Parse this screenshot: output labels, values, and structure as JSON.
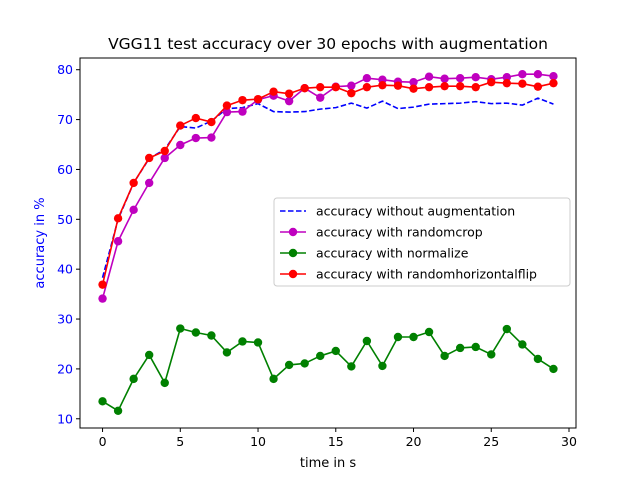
{
  "chart_data": {
    "type": "line",
    "title": "VGG11 test accuracy over 30 epochs with augmentation",
    "xlabel": "time in s",
    "ylabel": "accuracy in %",
    "ylabel_color": "#0000ff",
    "ytick_color": "#0000ff",
    "xlim": [
      -1.45,
      30.45
    ],
    "ylim": [
      8.15,
      82.35
    ],
    "xticks": [
      0,
      5,
      10,
      15,
      20,
      25,
      30
    ],
    "yticks": [
      10,
      20,
      30,
      40,
      50,
      60,
      70,
      80
    ],
    "grid": false,
    "legend_position": "center-right",
    "x": [
      0,
      1,
      2,
      3,
      4,
      5,
      6,
      7,
      8,
      9,
      10,
      11,
      12,
      13,
      14,
      15,
      16,
      17,
      18,
      19,
      20,
      21,
      22,
      23,
      24,
      25,
      26,
      27,
      28,
      29
    ],
    "series": [
      {
        "name": "accuracy without augmentation",
        "color": "#0000ff",
        "style": "dashed",
        "marker": "none",
        "values": [
          38.3,
          50.0,
          57.3,
          62.2,
          64.0,
          68.6,
          68.3,
          69.7,
          72.2,
          72.4,
          73.2,
          71.6,
          71.5,
          71.6,
          72.1,
          72.4,
          73.3,
          72.3,
          73.7,
          72.2,
          72.5,
          73.1,
          73.2,
          73.3,
          73.6,
          73.2,
          73.3,
          72.9,
          74.3,
          73.1
        ]
      },
      {
        "name": "accuracy with randomcrop",
        "color": "#bf00bf",
        "style": "solid",
        "marker": "circle",
        "values": [
          34.1,
          45.6,
          51.9,
          57.3,
          62.3,
          64.9,
          66.3,
          66.4,
          71.5,
          71.6,
          74.0,
          74.8,
          73.7,
          76.3,
          74.4,
          76.6,
          76.8,
          78.3,
          78.0,
          77.6,
          77.5,
          78.6,
          78.2,
          78.3,
          78.5,
          78.1,
          78.5,
          79.1,
          79.1,
          78.7
        ]
      },
      {
        "name": "accuracy with normalize",
        "color": "#008000",
        "style": "solid",
        "marker": "circle",
        "values": [
          13.5,
          11.6,
          18.0,
          22.8,
          17.2,
          28.1,
          27.3,
          26.7,
          23.3,
          25.5,
          25.3,
          18.0,
          20.8,
          21.1,
          22.6,
          23.6,
          20.5,
          25.6,
          20.6,
          26.4,
          26.4,
          27.4,
          22.6,
          24.2,
          24.4,
          22.9,
          28.0,
          24.9,
          22.0,
          20.0
        ]
      },
      {
        "name": "accuracy with randomhorizontalflip",
        "color": "#ff0000",
        "style": "solid",
        "marker": "circle",
        "values": [
          36.9,
          50.2,
          57.3,
          62.3,
          63.7,
          68.8,
          70.3,
          69.5,
          72.8,
          73.9,
          74.1,
          75.6,
          75.2,
          76.3,
          76.5,
          76.5,
          75.3,
          76.5,
          76.9,
          76.8,
          76.2,
          76.5,
          76.7,
          76.7,
          76.5,
          77.5,
          77.3,
          77.2,
          76.6,
          77.3
        ]
      }
    ]
  }
}
